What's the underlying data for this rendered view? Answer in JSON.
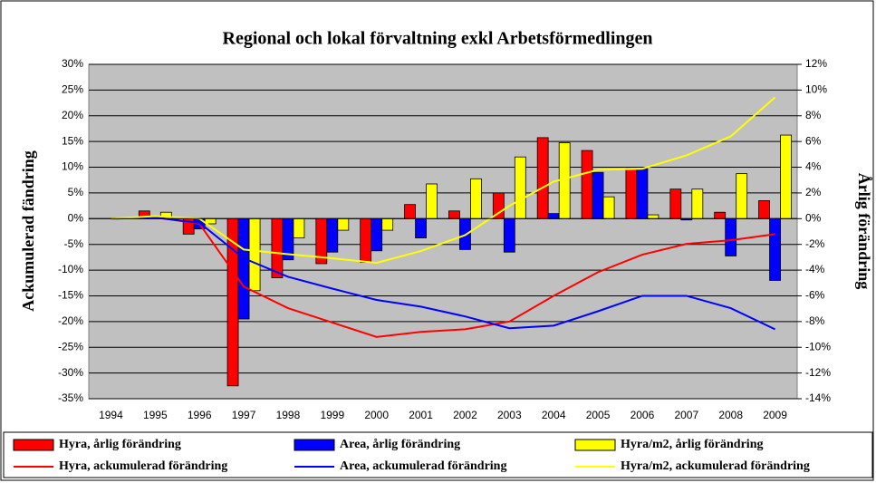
{
  "chart_data": {
    "type": "bar",
    "title": "Regional och lokal förvaltning exkl Arbetsförmedlingen",
    "y_label": "Ackumulerad fändring",
    "y2_label": "Årlig förändring",
    "categories": [
      "1994",
      "1995",
      "1996",
      "1997",
      "1998",
      "1999",
      "2000",
      "2001",
      "2002",
      "2003",
      "2004",
      "2005",
      "2006",
      "2007",
      "2008",
      "2009"
    ],
    "ylim": [
      -35,
      30
    ],
    "yticks": [
      {
        "value": 30,
        "label": "30%"
      },
      {
        "value": 25,
        "label": "25%"
      },
      {
        "value": 20,
        "label": "20%"
      },
      {
        "value": 15,
        "label": "15%"
      },
      {
        "value": 10,
        "label": "10%"
      },
      {
        "value": 5,
        "label": "5%"
      },
      {
        "value": 0,
        "label": "0%"
      },
      {
        "value": -5,
        "label": "-5%"
      },
      {
        "value": -10,
        "label": "-10%"
      },
      {
        "value": -15,
        "label": "-15%"
      },
      {
        "value": -20,
        "label": "-20%"
      },
      {
        "value": -25,
        "label": "-25%"
      },
      {
        "value": -30,
        "label": "-30%"
      },
      {
        "value": -35,
        "label": "-35%"
      }
    ],
    "y2lim": [
      -14,
      12
    ],
    "y2ticks": [
      {
        "value": 12,
        "label": "12%"
      },
      {
        "value": 10,
        "label": "10%"
      },
      {
        "value": 8,
        "label": "8%"
      },
      {
        "value": 6,
        "label": "6%"
      },
      {
        "value": 4,
        "label": "4%"
      },
      {
        "value": 2,
        "label": "2%"
      },
      {
        "value": 0,
        "label": "0%"
      },
      {
        "value": -2,
        "label": "-2%"
      },
      {
        "value": -4,
        "label": "-4%"
      },
      {
        "value": -6,
        "label": "-6%"
      },
      {
        "value": -8,
        "label": "-8%"
      },
      {
        "value": -10,
        "label": "-10%"
      },
      {
        "value": -12,
        "label": "-12%"
      },
      {
        "value": -14,
        "label": "-14%"
      }
    ],
    "grid": true,
    "series": [
      {
        "name": "Hyra, årlig förändring",
        "type": "bar",
        "axis": "y2",
        "color": "#ff0000",
        "values": [
          null,
          0.6,
          -1.2,
          -13,
          -4.6,
          -3.5,
          -3.4,
          1.1,
          0.6,
          2.0,
          6.3,
          5.3,
          3.9,
          2.3,
          0.5,
          1.4
        ]
      },
      {
        "name": "Area, årlig förändring",
        "type": "bar",
        "axis": "y2",
        "color": "#0000ff",
        "values": [
          null,
          0,
          -0.8,
          -7.8,
          -3.2,
          -2.6,
          -2.5,
          -1.5,
          -2.4,
          -2.6,
          0.4,
          3.6,
          3.9,
          -0.1,
          -2.9,
          -4.8
        ]
      },
      {
        "name": "Hyra/m2, årlig förändring",
        "type": "bar",
        "axis": "y2",
        "color": "#ffff00",
        "values": [
          null,
          0.5,
          -0.4,
          -5.6,
          -1.5,
          -0.9,
          -0.9,
          2.7,
          3.1,
          4.8,
          5.9,
          1.7,
          0.3,
          2.3,
          3.5,
          6.5
        ]
      },
      {
        "name": "Hyra, ackumulerad förändring",
        "type": "line",
        "color": "#ff0000",
        "values": [
          0,
          0.3,
          -1,
          -13.2,
          -17.4,
          -20.2,
          -23,
          -22,
          -21.5,
          -20,
          -15,
          -10.4,
          -7,
          -4.9,
          -4.2,
          -3
        ]
      },
      {
        "name": "Area, ackumulerad förändring",
        "type": "line",
        "color": "#0000ff",
        "values": [
          0,
          0.2,
          -0.8,
          -7.7,
          -11.3,
          -13.6,
          -15.8,
          -17.1,
          -19,
          -21.3,
          -20.8,
          -18,
          -15,
          -15,
          -17.4,
          -21.5
        ]
      },
      {
        "name": "Hyra/m2, ackumulerad förändring",
        "type": "line",
        "color": "#ffff00",
        "values": [
          0,
          0.5,
          0,
          -6,
          -6.9,
          -7.7,
          -8.6,
          -6.3,
          -3.2,
          2.5,
          7.2,
          9.5,
          9.7,
          12.3,
          16,
          23.6
        ]
      }
    ]
  }
}
